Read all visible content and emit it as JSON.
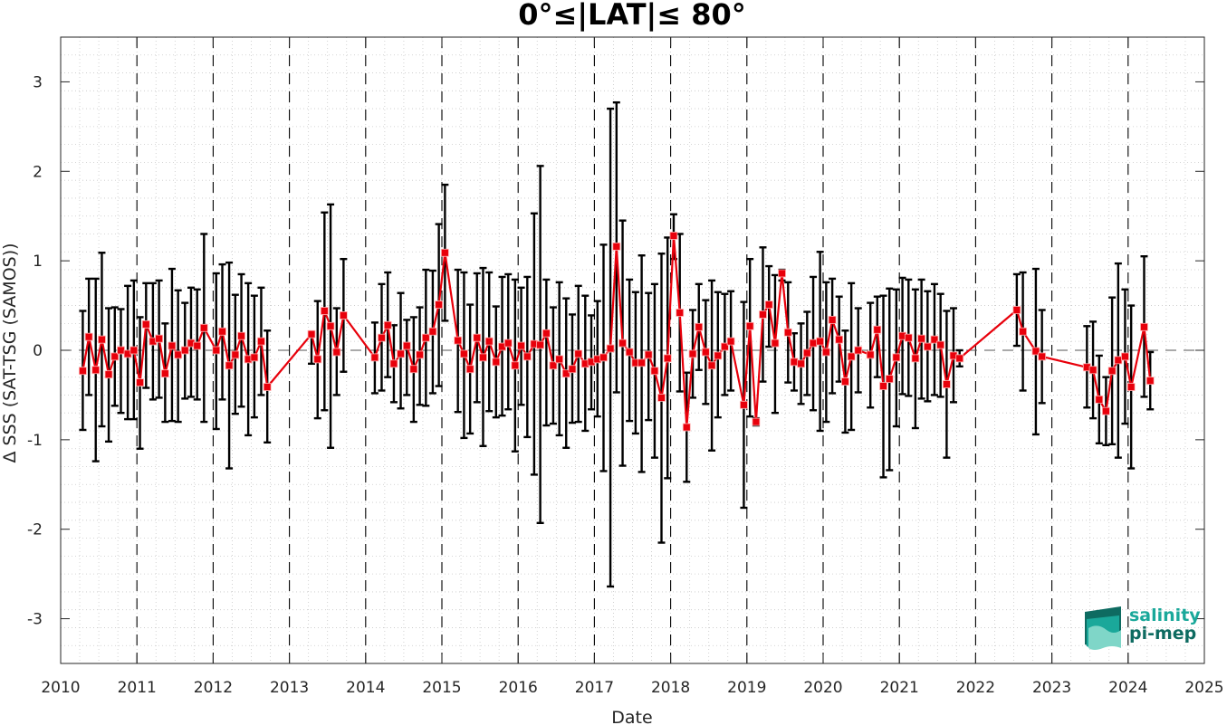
{
  "chart_data": {
    "type": "line",
    "title": "0°≤|LAT|≤ 80°",
    "xlabel": "Date",
    "ylabel": "Δ SSS (SAT-TSG (SAMOS))",
    "xlim": [
      2010,
      2025
    ],
    "ylim": [
      -3.5,
      3.5
    ],
    "x_ticks": [
      2010,
      2011,
      2012,
      2013,
      2014,
      2015,
      2016,
      2017,
      2018,
      2019,
      2020,
      2021,
      2022,
      2023,
      2024,
      2025
    ],
    "x_tick_labels": [
      "2010",
      "2011",
      "2012",
      "2013",
      "2014",
      "2015",
      "2016",
      "2017",
      "2018",
      "2019",
      "2020",
      "2021",
      "2022",
      "2023",
      "2024",
      "2025"
    ],
    "y_ticks": [
      -3,
      -2,
      -1,
      0,
      1,
      2,
      3
    ],
    "y_tick_labels": [
      "-3",
      "-2",
      "-1",
      "0",
      "1",
      "2",
      "3"
    ],
    "grid": "minor dotted",
    "zero_line": "dashed",
    "year_lines": "dashed vertical",
    "colors": {
      "series": "#e8000b",
      "errorbar": "#000000",
      "grid": "#c8c8c8",
      "logo_teal": "#1aa89a",
      "logo_dark": "#0e6b61"
    },
    "series": [
      {
        "marker": "square",
        "points": [
          {
            "x": 2010.29,
            "y": -0.23,
            "lo": -0.89,
            "hi": 0.44
          },
          {
            "x": 2010.37,
            "y": 0.15,
            "lo": -0.5,
            "hi": 0.8
          },
          {
            "x": 2010.46,
            "y": -0.22,
            "lo": -1.24,
            "hi": 0.8
          },
          {
            "x": 2010.54,
            "y": 0.12,
            "lo": -0.85,
            "hi": 1.09
          },
          {
            "x": 2010.63,
            "y": -0.27,
            "lo": -1.02,
            "hi": 0.47
          },
          {
            "x": 2010.71,
            "y": -0.07,
            "lo": -0.62,
            "hi": 0.48
          },
          {
            "x": 2010.79,
            "y": 0.0,
            "lo": -0.7,
            "hi": 0.46
          },
          {
            "x": 2010.88,
            "y": -0.04,
            "lo": -0.77,
            "hi": 0.72
          },
          {
            "x": 2010.96,
            "y": 0.0,
            "lo": -0.77,
            "hi": 0.78
          },
          {
            "x": 2011.04,
            "y": -0.36,
            "lo": -1.1,
            "hi": 0.37
          },
          {
            "x": 2011.12,
            "y": 0.29,
            "lo": -0.42,
            "hi": 0.75
          },
          {
            "x": 2011.21,
            "y": 0.1,
            "lo": -0.55,
            "hi": 0.75
          },
          {
            "x": 2011.29,
            "y": 0.13,
            "lo": -0.53,
            "hi": 0.78
          },
          {
            "x": 2011.37,
            "y": -0.26,
            "lo": -0.8,
            "hi": 0.3
          },
          {
            "x": 2011.46,
            "y": 0.05,
            "lo": -0.79,
            "hi": 0.91
          },
          {
            "x": 2011.54,
            "y": -0.05,
            "lo": -0.8,
            "hi": 0.67
          },
          {
            "x": 2011.63,
            "y": 0.0,
            "lo": -0.54,
            "hi": 0.53
          },
          {
            "x": 2011.71,
            "y": 0.08,
            "lo": -0.52,
            "hi": 0.7
          },
          {
            "x": 2011.79,
            "y": 0.05,
            "lo": -0.55,
            "hi": 0.68
          },
          {
            "x": 2011.88,
            "y": 0.25,
            "lo": -0.8,
            "hi": 1.3
          },
          {
            "x": 2012.04,
            "y": 0.0,
            "lo": -0.88,
            "hi": 0.86
          },
          {
            "x": 2012.12,
            "y": 0.21,
            "lo": -0.55,
            "hi": 0.96
          },
          {
            "x": 2012.21,
            "y": -0.17,
            "lo": -1.32,
            "hi": 0.98
          },
          {
            "x": 2012.29,
            "y": -0.05,
            "lo": -0.71,
            "hi": 0.62
          },
          {
            "x": 2012.37,
            "y": 0.16,
            "lo": -0.63,
            "hi": 0.85
          },
          {
            "x": 2012.46,
            "y": -0.1,
            "lo": -0.95,
            "hi": 0.75
          },
          {
            "x": 2012.54,
            "y": -0.08,
            "lo": -0.75,
            "hi": 0.61
          },
          {
            "x": 2012.63,
            "y": 0.1,
            "lo": -0.5,
            "hi": 0.7
          },
          {
            "x": 2012.71,
            "y": -0.41,
            "lo": -1.03,
            "hi": 0.22
          },
          {
            "x": 2013.29,
            "y": 0.18,
            "lo": -0.15,
            "hi": 0.18
          },
          {
            "x": 2013.37,
            "y": -0.1,
            "lo": -0.76,
            "hi": 0.55
          },
          {
            "x": 2013.46,
            "y": 0.44,
            "lo": -0.67,
            "hi": 1.54
          },
          {
            "x": 2013.54,
            "y": 0.27,
            "lo": -1.09,
            "hi": 1.63
          },
          {
            "x": 2013.62,
            "y": -0.02,
            "lo": -0.5,
            "hi": 0.47
          },
          {
            "x": 2013.71,
            "y": 0.39,
            "lo": -0.24,
            "hi": 1.02
          },
          {
            "x": 2014.12,
            "y": -0.08,
            "lo": -0.48,
            "hi": 0.31
          },
          {
            "x": 2014.21,
            "y": 0.14,
            "lo": -0.45,
            "hi": 0.74
          },
          {
            "x": 2014.29,
            "y": 0.28,
            "lo": -0.3,
            "hi": 0.87
          },
          {
            "x": 2014.37,
            "y": -0.15,
            "lo": -0.58,
            "hi": 0.28
          },
          {
            "x": 2014.46,
            "y": -0.04,
            "lo": -0.65,
            "hi": 0.64
          },
          {
            "x": 2014.54,
            "y": 0.05,
            "lo": -0.5,
            "hi": 0.34
          },
          {
            "x": 2014.63,
            "y": -0.21,
            "lo": -0.8,
            "hi": 0.37
          },
          {
            "x": 2014.71,
            "y": -0.05,
            "lo": -0.61,
            "hi": 0.48
          },
          {
            "x": 2014.79,
            "y": 0.14,
            "lo": -0.62,
            "hi": 0.9
          },
          {
            "x": 2014.88,
            "y": 0.21,
            "lo": -0.48,
            "hi": 0.89
          },
          {
            "x": 2014.96,
            "y": 0.51,
            "lo": -0.4,
            "hi": 1.41
          },
          {
            "x": 2015.04,
            "y": 1.09,
            "lo": 0.33,
            "hi": 1.85
          },
          {
            "x": 2015.21,
            "y": 0.11,
            "lo": -0.69,
            "hi": 0.9
          },
          {
            "x": 2015.29,
            "y": -0.04,
            "lo": -0.98,
            "hi": 0.87
          },
          {
            "x": 2015.37,
            "y": -0.21,
            "lo": -0.93,
            "hi": 0.51
          },
          {
            "x": 2015.46,
            "y": 0.14,
            "lo": -0.58,
            "hi": 0.86
          },
          {
            "x": 2015.54,
            "y": -0.08,
            "lo": -1.07,
            "hi": 0.92
          },
          {
            "x": 2015.62,
            "y": 0.1,
            "lo": -0.68,
            "hi": 0.87
          },
          {
            "x": 2015.71,
            "y": -0.13,
            "lo": -0.75,
            "hi": 0.49
          },
          {
            "x": 2015.79,
            "y": 0.04,
            "lo": -0.73,
            "hi": 0.82
          },
          {
            "x": 2015.87,
            "y": 0.08,
            "lo": -0.66,
            "hi": 0.85
          },
          {
            "x": 2015.96,
            "y": -0.17,
            "lo": -1.13,
            "hi": 0.79
          },
          {
            "x": 2016.04,
            "y": 0.05,
            "lo": -0.61,
            "hi": 0.7
          },
          {
            "x": 2016.12,
            "y": -0.07,
            "lo": -0.97,
            "hi": 0.82
          },
          {
            "x": 2016.21,
            "y": 0.07,
            "lo": -1.39,
            "hi": 1.53
          },
          {
            "x": 2016.29,
            "y": 0.06,
            "lo": -1.93,
            "hi": 2.06
          },
          {
            "x": 2016.37,
            "y": 0.19,
            "lo": -0.84,
            "hi": 0.79
          },
          {
            "x": 2016.46,
            "y": -0.17,
            "lo": -0.82,
            "hi": 0.48
          },
          {
            "x": 2016.54,
            "y": -0.1,
            "lo": -0.95,
            "hi": 0.76
          },
          {
            "x": 2016.63,
            "y": -0.26,
            "lo": -1.09,
            "hi": 0.58
          },
          {
            "x": 2016.71,
            "y": -0.21,
            "lo": -0.81,
            "hi": 0.4
          },
          {
            "x": 2016.79,
            "y": -0.04,
            "lo": -0.8,
            "hi": 0.72
          },
          {
            "x": 2016.88,
            "y": -0.15,
            "lo": -0.9,
            "hi": 0.61
          },
          {
            "x": 2016.96,
            "y": -0.13,
            "lo": -0.66,
            "hi": 0.39
          },
          {
            "x": 2017.04,
            "y": -0.1,
            "lo": -0.74,
            "hi": 0.55
          },
          {
            "x": 2017.12,
            "y": -0.08,
            "lo": -1.35,
            "hi": 1.18
          },
          {
            "x": 2017.21,
            "y": 0.02,
            "lo": -2.64,
            "hi": 2.7
          },
          {
            "x": 2017.29,
            "y": 1.16,
            "lo": -0.47,
            "hi": 2.77
          },
          {
            "x": 2017.37,
            "y": 0.08,
            "lo": -1.29,
            "hi": 1.45
          },
          {
            "x": 2017.46,
            "y": -0.02,
            "lo": -0.79,
            "hi": 0.79
          },
          {
            "x": 2017.54,
            "y": -0.14,
            "lo": -0.93,
            "hi": 0.65
          },
          {
            "x": 2017.62,
            "y": -0.14,
            "lo": -1.36,
            "hi": 1.06
          },
          {
            "x": 2017.71,
            "y": -0.05,
            "lo": -0.78,
            "hi": 0.64
          },
          {
            "x": 2017.79,
            "y": -0.23,
            "lo": -1.2,
            "hi": 0.74
          },
          {
            "x": 2017.88,
            "y": -0.53,
            "lo": -2.15,
            "hi": 1.08
          },
          {
            "x": 2017.96,
            "y": -0.09,
            "lo": -1.43,
            "hi": 1.26
          },
          {
            "x": 2018.04,
            "y": 1.28,
            "lo": 1.02,
            "hi": 1.52
          },
          {
            "x": 2018.12,
            "y": 0.42,
            "lo": -0.46,
            "hi": 1.3
          },
          {
            "x": 2018.21,
            "y": -0.86,
            "lo": -1.47,
            "hi": -0.25
          },
          {
            "x": 2018.29,
            "y": -0.04,
            "lo": -0.53,
            "hi": 0.45
          },
          {
            "x": 2018.37,
            "y": 0.26,
            "lo": -0.22,
            "hi": 0.74
          },
          {
            "x": 2018.46,
            "y": -0.02,
            "lo": -0.6,
            "hi": 0.56
          },
          {
            "x": 2018.54,
            "y": -0.17,
            "lo": -1.12,
            "hi": 0.78
          },
          {
            "x": 2018.62,
            "y": -0.06,
            "lo": -0.75,
            "hi": 0.65
          },
          {
            "x": 2018.71,
            "y": 0.04,
            "lo": -0.5,
            "hi": 0.63
          },
          {
            "x": 2018.79,
            "y": 0.1,
            "lo": -0.45,
            "hi": 0.66
          },
          {
            "x": 2018.96,
            "y": -0.61,
            "lo": -1.76,
            "hi": 0.54
          },
          {
            "x": 2019.04,
            "y": 0.27,
            "lo": -0.74,
            "hi": 1.02
          },
          {
            "x": 2019.12,
            "y": -0.8,
            "lo": -0.84,
            "hi": -0.76
          },
          {
            "x": 2019.21,
            "y": 0.4,
            "lo": -0.35,
            "hi": 1.15
          },
          {
            "x": 2019.29,
            "y": 0.51,
            "lo": 0.04,
            "hi": 0.94
          },
          {
            "x": 2019.37,
            "y": 0.08,
            "lo": -0.7,
            "hi": 0.84
          },
          {
            "x": 2019.46,
            "y": 0.86,
            "lo": 0.78,
            "hi": 0.9
          },
          {
            "x": 2019.54,
            "y": 0.2,
            "lo": -0.36,
            "hi": 0.76
          },
          {
            "x": 2019.62,
            "y": -0.13,
            "lo": -0.45,
            "hi": 0.19
          },
          {
            "x": 2019.71,
            "y": -0.15,
            "lo": -0.6,
            "hi": 0.3
          },
          {
            "x": 2019.79,
            "y": -0.03,
            "lo": -0.5,
            "hi": 0.43
          },
          {
            "x": 2019.87,
            "y": 0.08,
            "lo": -0.67,
            "hi": 0.82
          },
          {
            "x": 2019.96,
            "y": 0.1,
            "lo": -0.9,
            "hi": 1.1
          },
          {
            "x": 2020.04,
            "y": -0.02,
            "lo": -0.8,
            "hi": 0.76
          },
          {
            "x": 2020.12,
            "y": 0.34,
            "lo": -0.48,
            "hi": 0.8
          },
          {
            "x": 2020.21,
            "y": 0.12,
            "lo": -0.35,
            "hi": 0.6
          },
          {
            "x": 2020.29,
            "y": -0.35,
            "lo": -0.92,
            "hi": 0.22
          },
          {
            "x": 2020.37,
            "y": -0.07,
            "lo": -0.89,
            "hi": 0.75
          },
          {
            "x": 2020.46,
            "y": 0.0,
            "lo": -0.47,
            "hi": 0.47
          },
          {
            "x": 2020.62,
            "y": -0.05,
            "lo": -0.64,
            "hi": 0.53
          },
          {
            "x": 2020.71,
            "y": 0.23,
            "lo": -0.3,
            "hi": 0.6
          },
          {
            "x": 2020.79,
            "y": -0.4,
            "lo": -1.42,
            "hi": 0.61
          },
          {
            "x": 2020.87,
            "y": -0.32,
            "lo": -1.34,
            "hi": 0.69
          },
          {
            "x": 2020.96,
            "y": -0.08,
            "lo": -0.85,
            "hi": 0.68
          },
          {
            "x": 2021.04,
            "y": 0.16,
            "lo": -0.49,
            "hi": 0.81
          },
          {
            "x": 2021.12,
            "y": 0.14,
            "lo": -0.51,
            "hi": 0.79
          },
          {
            "x": 2021.21,
            "y": -0.09,
            "lo": -0.87,
            "hi": 0.68
          },
          {
            "x": 2021.29,
            "y": 0.13,
            "lo": -0.54,
            "hi": 0.79
          },
          {
            "x": 2021.37,
            "y": 0.04,
            "lo": -0.57,
            "hi": 0.66
          },
          {
            "x": 2021.46,
            "y": 0.12,
            "lo": -0.5,
            "hi": 0.74
          },
          {
            "x": 2021.54,
            "y": 0.06,
            "lo": -0.52,
            "hi": 0.63
          },
          {
            "x": 2021.62,
            "y": -0.38,
            "lo": -1.2,
            "hi": 0.44
          },
          {
            "x": 2021.71,
            "y": -0.06,
            "lo": -0.58,
            "hi": 0.47
          },
          {
            "x": 2021.79,
            "y": -0.09,
            "lo": -0.18,
            "hi": 0.0
          },
          {
            "x": 2022.54,
            "y": 0.45,
            "lo": 0.05,
            "hi": 0.85
          },
          {
            "x": 2022.62,
            "y": 0.21,
            "lo": -0.45,
            "hi": 0.87
          },
          {
            "x": 2022.79,
            "y": -0.01,
            "lo": -0.94,
            "hi": 0.91
          },
          {
            "x": 2022.87,
            "y": -0.07,
            "lo": -0.59,
            "hi": 0.45
          },
          {
            "x": 2023.46,
            "y": -0.19,
            "lo": -0.64,
            "hi": 0.27
          },
          {
            "x": 2023.54,
            "y": -0.22,
            "lo": -0.76,
            "hi": 0.32
          },
          {
            "x": 2023.62,
            "y": -0.55,
            "lo": -1.04,
            "hi": -0.06
          },
          {
            "x": 2023.71,
            "y": -0.68,
            "lo": -1.06,
            "hi": -0.3
          },
          {
            "x": 2023.79,
            "y": -0.23,
            "lo": -1.05,
            "hi": 0.59
          },
          {
            "x": 2023.87,
            "y": -0.11,
            "lo": -1.2,
            "hi": 0.97
          },
          {
            "x": 2023.96,
            "y": -0.07,
            "lo": -0.82,
            "hi": 0.68
          },
          {
            "x": 2024.04,
            "y": -0.41,
            "lo": -1.32,
            "hi": 0.5
          },
          {
            "x": 2024.21,
            "y": 0.26,
            "lo": -0.52,
            "hi": 1.05
          },
          {
            "x": 2024.29,
            "y": -0.34,
            "lo": -0.66,
            "hi": -0.02
          }
        ]
      }
    ]
  },
  "logo": {
    "line1": "salinity",
    "line2": "pi-mep"
  }
}
